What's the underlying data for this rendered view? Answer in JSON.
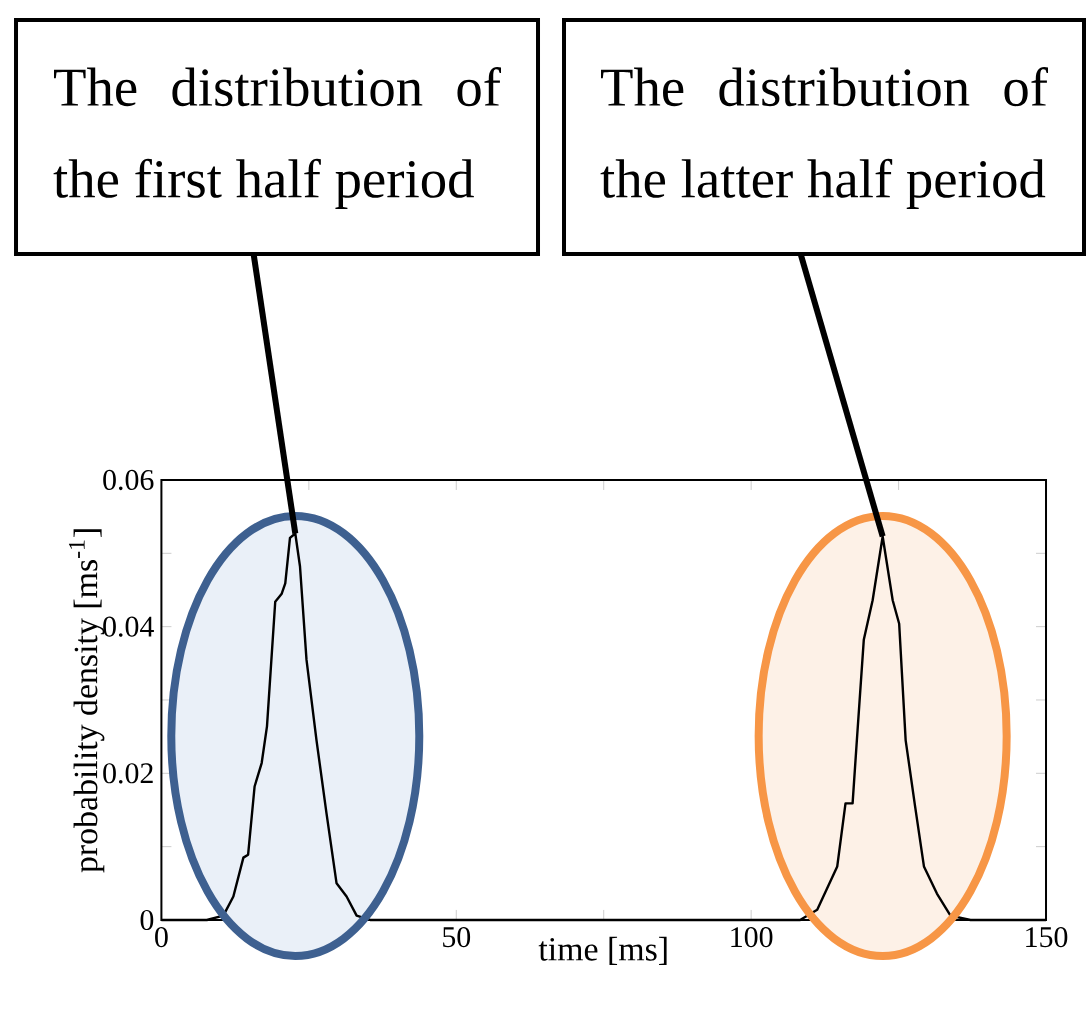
{
  "chart_data": {
    "type": "line",
    "xlabel": "time [ms]",
    "ylabel": "probability density [ms$^{-1}$]",
    "xlim": [
      0,
      150
    ],
    "ylim": [
      0,
      0.06
    ],
    "xticks": [
      0,
      {
        "value": 25,
        "label": null
      },
      50,
      {
        "value": 75,
        "label": null
      },
      100,
      {
        "value": 125,
        "label": null
      },
      150
    ],
    "yticks": [
      0,
      {
        "value": 0.01,
        "label": null
      },
      0.02,
      {
        "value": 0.03,
        "label": null
      },
      0.04,
      {
        "value": 0.05,
        "label": null
      },
      0.06
    ],
    "grid": false,
    "marker": "none",
    "line_style": "solid",
    "series": [
      {
        "color": "#000000",
        "x": [
          0,
          7.7,
          10.5,
          12.2,
          13.9,
          14.7,
          15.8,
          17.0,
          17.9,
          19.3,
          20.4,
          21.0,
          21.8,
          22.7,
          23.5,
          24.6,
          26.3,
          28.0,
          29.7,
          31.4,
          33.1,
          35.4,
          108.3,
          111.2,
          114.6,
          116.0,
          117.2,
          118.0,
          119.1,
          120.6,
          122.3,
          124.0,
          125.1,
          126.2,
          127.8,
          129.3,
          131.5,
          133.8,
          137.2,
          150
        ],
        "values": [
          0,
          0,
          0.0006,
          0.0032,
          0.0085,
          0.0089,
          0.0182,
          0.0214,
          0.0264,
          0.0434,
          0.0445,
          0.0459,
          0.0521,
          0.0527,
          0.0482,
          0.0355,
          0.0245,
          0.0145,
          0.005,
          0.0032,
          0.0006,
          0,
          0,
          0.0014,
          0.0073,
          0.0159,
          0.0159,
          0.0254,
          0.0382,
          0.0436,
          0.0523,
          0.0436,
          0.0404,
          0.0245,
          0.0155,
          0.0073,
          0.0036,
          0.0006,
          0,
          0
        ]
      }
    ],
    "annotations": [
      {
        "text": "The distribution of the first half period",
        "x": 22.7,
        "y": 0.0527
      },
      {
        "text": "The distribution of the latter half period",
        "x": 122.3,
        "y": 0.0523
      }
    ]
  }
}
